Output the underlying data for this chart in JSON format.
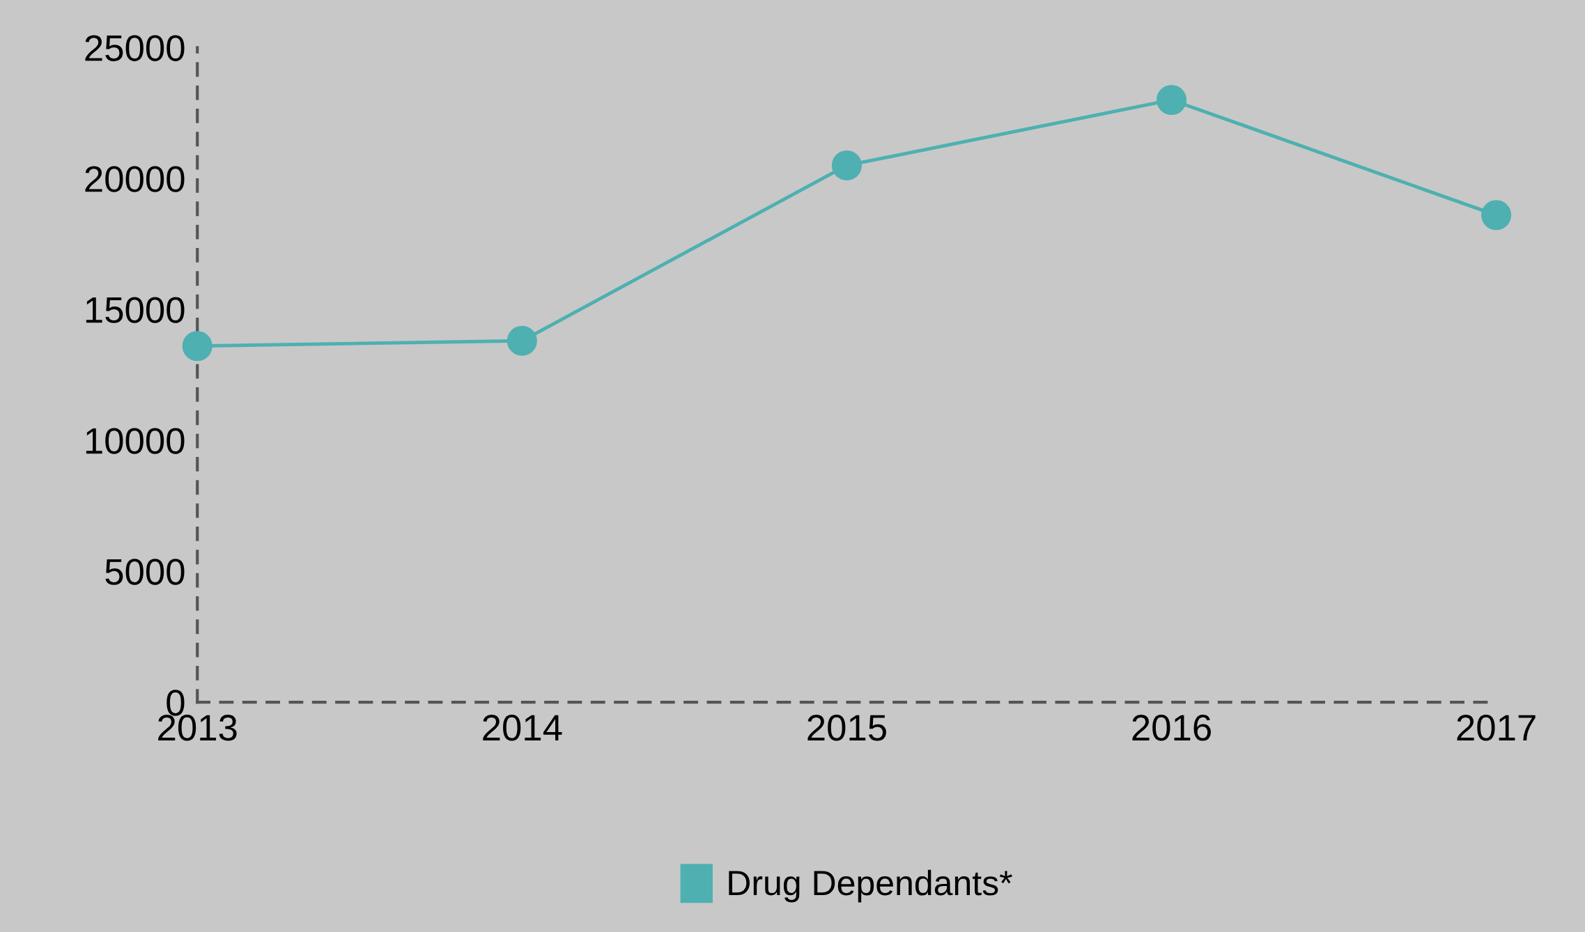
{
  "chart_data": {
    "type": "line",
    "categories": [
      "2013",
      "2014",
      "2015",
      "2016",
      "2017"
    ],
    "series": [
      {
        "name": "Drug Dependants*",
        "color": "#4eb0b0",
        "values": [
          13600,
          13800,
          20500,
          23000,
          18600
        ]
      }
    ],
    "ylim": [
      0,
      25000
    ],
    "yticks": [
      0,
      5000,
      10000,
      15000,
      20000,
      25000
    ],
    "marker": "circle",
    "line_style": "solid",
    "grid": false,
    "legend": "bottom"
  }
}
